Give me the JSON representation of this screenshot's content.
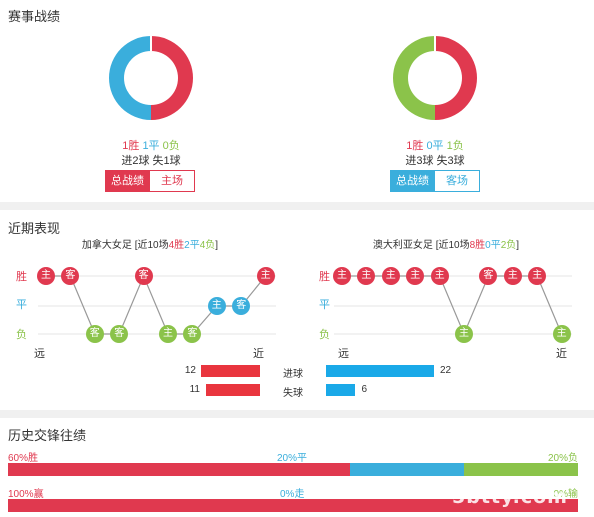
{
  "colors": {
    "win": "#e0394f",
    "draw": "#3aaedc",
    "loss": "#8bc34a",
    "goal": "#e9353e",
    "concede": "#1aa9e8"
  },
  "section1": {
    "title": "赛事战绩",
    "home": {
      "donut": {
        "win": 1,
        "draw": 1,
        "loss": 0
      },
      "w_label": "1胜",
      "d_label": "1平",
      "l_label": "0负",
      "goals_for": "进2球",
      "goals_against": "失1球",
      "tab_total": "总战绩",
      "tab_venue": "主场"
    },
    "away": {
      "donut": {
        "win": 1,
        "draw": 0,
        "loss": 1
      },
      "w_label": "1胜",
      "d_label": "0平",
      "l_label": "1负",
      "goals_for": "进3球",
      "goals_against": "失3球",
      "tab_total": "总战绩",
      "tab_venue": "客场"
    }
  },
  "section2": {
    "title": "近期表现",
    "axis": {
      "win": "胜",
      "draw": "平",
      "loss": "负",
      "far": "远",
      "near": "近"
    },
    "home": {
      "team": "加拿大女足",
      "rec_open": " [近10场",
      "rec_w": "4胜",
      "rec_d": "2平",
      "rec_l": "4负",
      "rec_close": "]",
      "form": [
        {
          "r": "w",
          "v": "主"
        },
        {
          "r": "w",
          "v": "客"
        },
        {
          "r": "l",
          "v": "客"
        },
        {
          "r": "l",
          "v": "客"
        },
        {
          "r": "w",
          "v": "客"
        },
        {
          "r": "l",
          "v": "主"
        },
        {
          "r": "l",
          "v": "客"
        },
        {
          "r": "d",
          "v": "主"
        },
        {
          "r": "d",
          "v": "客"
        },
        {
          "r": "w",
          "v": "主"
        }
      ]
    },
    "away": {
      "team": "澳大利亚女足",
      "rec_open": " [近10场",
      "rec_w": "8胜",
      "rec_d": "0平",
      "rec_l": "2负",
      "rec_close": "]",
      "form": [
        {
          "r": "w",
          "v": "主"
        },
        {
          "r": "w",
          "v": "主"
        },
        {
          "r": "w",
          "v": "主"
        },
        {
          "r": "w",
          "v": "主"
        },
        {
          "r": "w",
          "v": "主"
        },
        {
          "r": "l",
          "v": "主"
        },
        {
          "r": "w",
          "v": "客"
        },
        {
          "r": "w",
          "v": "主"
        },
        {
          "r": "w",
          "v": "主"
        },
        {
          "r": "l",
          "v": "主"
        }
      ]
    },
    "goals": {
      "scored_label": "进球",
      "conceded_label": "失球",
      "home_scored": 12,
      "home_conceded": 11,
      "away_scored": 22,
      "away_conceded": 6
    }
  },
  "section3": {
    "title": "历史交锋往绩",
    "row1": {
      "win_label": "60%胜",
      "draw_label": "20%平",
      "loss_label": "20%负",
      "win": 60,
      "draw": 20,
      "loss": 20
    },
    "row2": {
      "win_label": "100%赢",
      "draw_label": "0%走",
      "loss_label": "0%输",
      "win": 100,
      "draw": 0,
      "loss": 0
    }
  },
  "watermark": "5btty.com"
}
